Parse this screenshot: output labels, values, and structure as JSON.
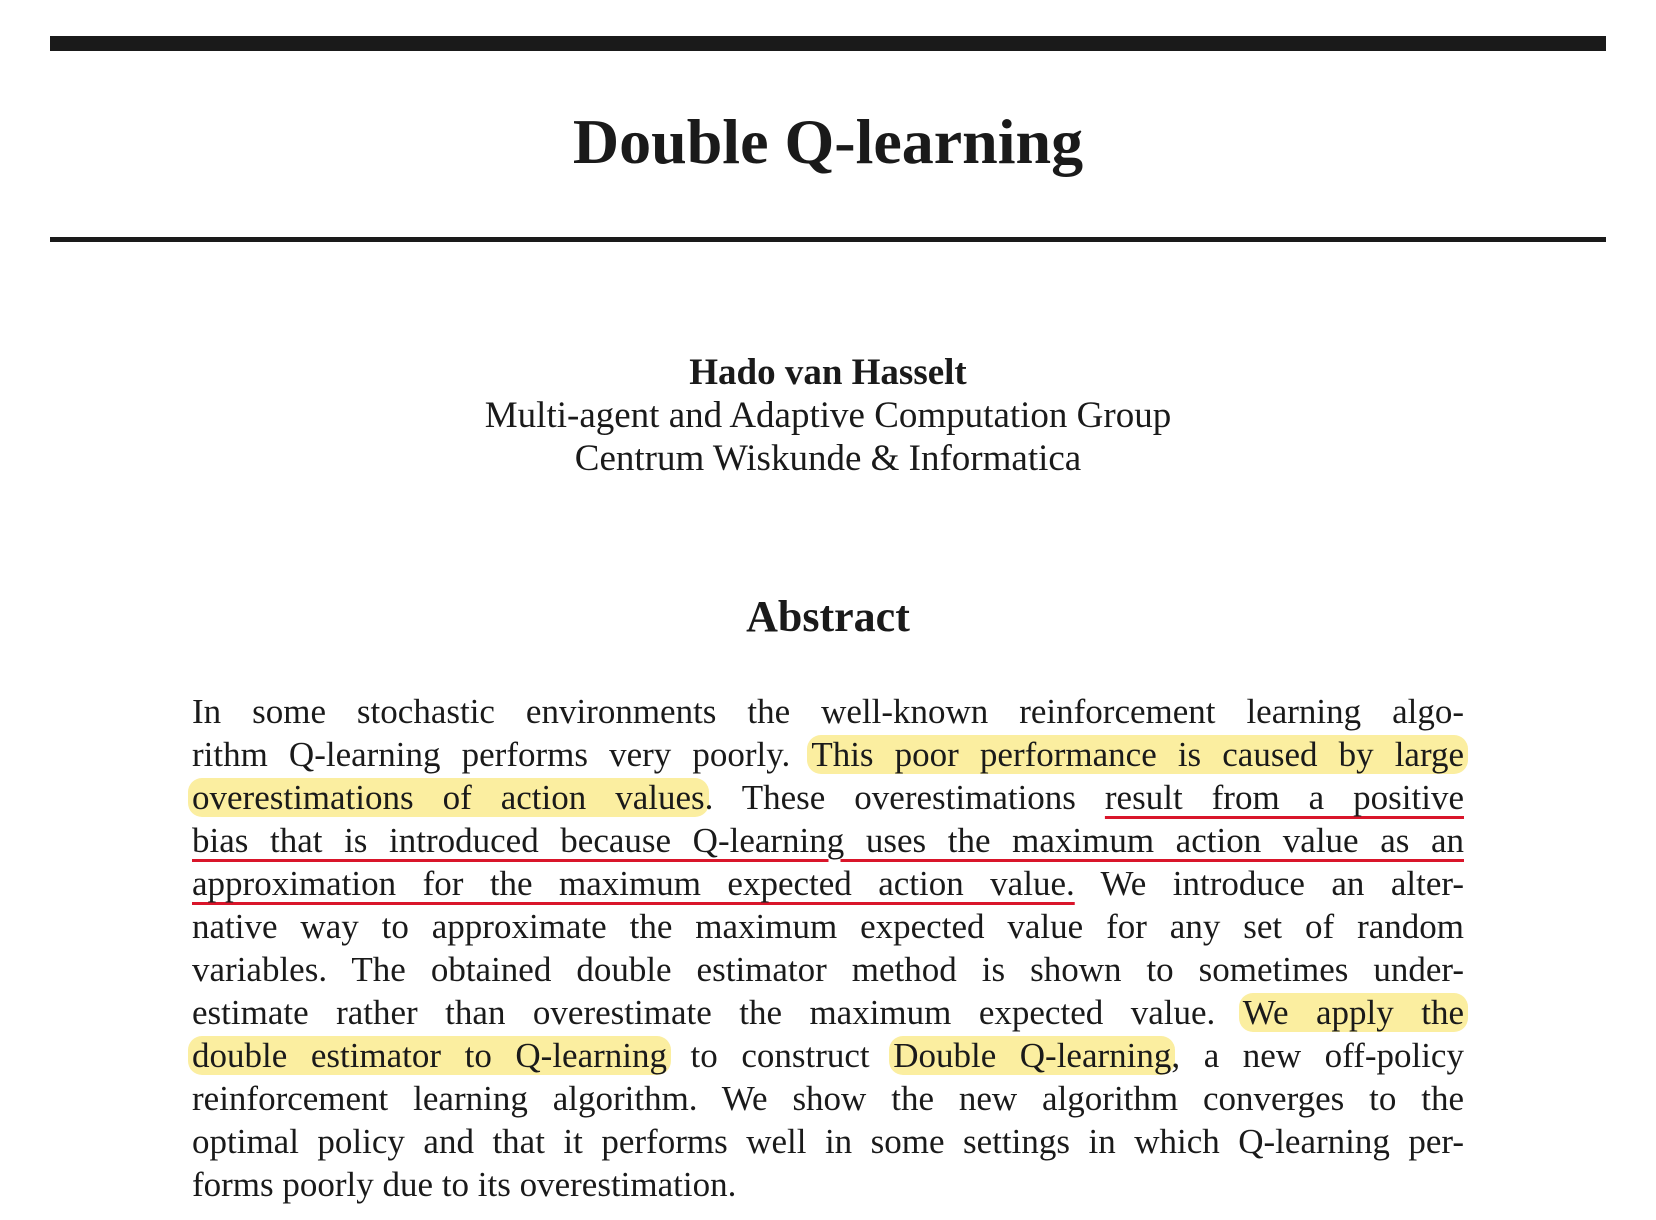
{
  "paper": {
    "title": "Double Q-learning",
    "author": {
      "name": "Hado van Hasselt",
      "affiliation_1": "Multi-agent and Adaptive Computation Group",
      "affiliation_2": "Centrum Wiskunde & Informatica"
    },
    "abstract_heading": "Abstract",
    "abstract_lines": [
      [
        {
          "t": "In some stochastic environments the well-known reinforcement learning algo-",
          "s": ""
        }
      ],
      [
        {
          "t": "rithm Q-learning performs very poorly. ",
          "s": ""
        },
        {
          "t": "This poor performance is caused by large",
          "s": "hl"
        }
      ],
      [
        {
          "t": "overestimations of action values",
          "s": "hl"
        },
        {
          "t": ".  These overestimations ",
          "s": ""
        },
        {
          "t": "result from a positive",
          "s": "ul"
        }
      ],
      [
        {
          "t": "bias that is introduced because Q-learning uses the maximum action value as an",
          "s": "ul"
        }
      ],
      [
        {
          "t": "approximation for the maximum expected action value.",
          "s": "ul"
        },
        {
          "t": " We introduce an alter-",
          "s": ""
        }
      ],
      [
        {
          "t": "native way to approximate the maximum expected value for any set of random",
          "s": ""
        }
      ],
      [
        {
          "t": "variables.  The obtained double estimator method is shown to sometimes under-",
          "s": ""
        }
      ],
      [
        {
          "t": "estimate rather than overestimate the maximum expected value.  ",
          "s": ""
        },
        {
          "t": "We apply the",
          "s": "hl"
        }
      ],
      [
        {
          "t": "double estimator to Q-learning",
          "s": "hl"
        },
        {
          "t": " to construct ",
          "s": ""
        },
        {
          "t": "Double Q-learning",
          "s": "hl"
        },
        {
          "t": ", a new off-policy",
          "s": ""
        }
      ],
      [
        {
          "t": "reinforcement learning algorithm.  We show the new algorithm converges to the",
          "s": ""
        }
      ],
      [
        {
          "t": "optimal policy and that it performs well in some settings in which Q-learning per-",
          "s": ""
        }
      ],
      [
        {
          "t": "forms poorly due to its overestimation.",
          "s": ""
        }
      ]
    ]
  },
  "colors": {
    "highlight": "#fbeea0",
    "underline": "#d9152a",
    "text": "#1a1a1a"
  }
}
